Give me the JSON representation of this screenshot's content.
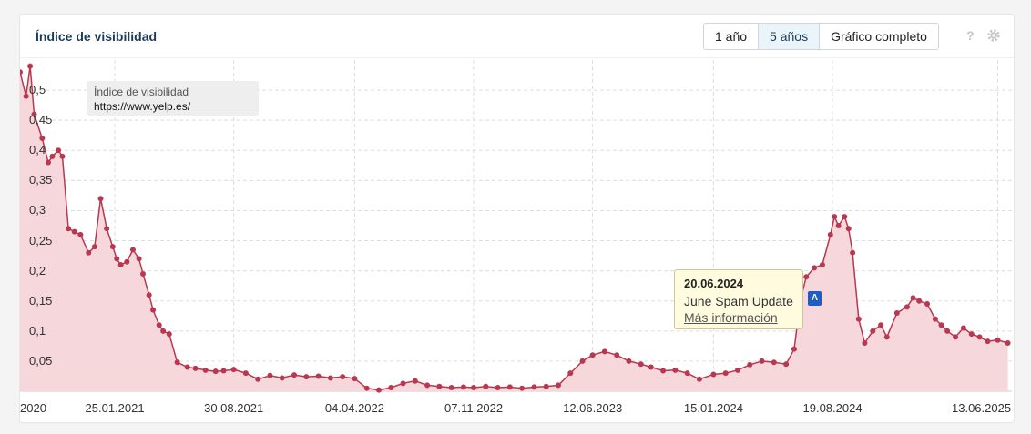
{
  "header": {
    "title": "Índice de visibilidad",
    "ranges": [
      "1 año",
      "5 años",
      "Gráfico completo"
    ],
    "active_range": "5 años"
  },
  "icons": {
    "help": "question-mark-icon",
    "settings": "gear-icon"
  },
  "legend": {
    "title": "Índice de visibilidad",
    "series": "https://www.yelp.es/"
  },
  "event": {
    "marker": "A",
    "date": "20.06.2024",
    "text": "June Spam Update",
    "link": "Más información",
    "x": 2024.47
  },
  "colors": {
    "line": "#b8384f",
    "fill": "#f5d7dc",
    "marker": "#1b5ec6",
    "title": "#1c3a57"
  },
  "chart_data": {
    "type": "area",
    "ylim": [
      0,
      0.55
    ],
    "xlim": [
      2020.6,
      2025.52
    ],
    "grid": true,
    "legend": "top-left",
    "y_ticks": [
      "0,05",
      "0,1",
      "0,15",
      "0,2",
      "0,25",
      "0,3",
      "0,35",
      "0,4",
      "0,45",
      "0,5"
    ],
    "y_tick_values": [
      0.05,
      0.1,
      0.15,
      0.2,
      0.25,
      0.3,
      0.35,
      0.4,
      0.45,
      0.5
    ],
    "x_ticks": [
      "2020",
      "25.01.2021",
      "30.08.2021",
      "04.04.2022",
      "07.11.2022",
      "12.06.2023",
      "15.01.2024",
      "19.08.2024",
      "13.06.2025"
    ],
    "x_tick_values": [
      2020.6,
      2021.07,
      2021.66,
      2022.26,
      2022.85,
      2023.44,
      2024.04,
      2024.63,
      2025.45
    ],
    "series": [
      {
        "x": [
          2020.6,
          2020.63,
          2020.65,
          2020.67,
          2020.71,
          2020.74,
          2020.76,
          2020.79,
          2020.81,
          2020.84,
          2020.87,
          2020.9,
          2020.94,
          2020.97,
          2021.0,
          2021.03,
          2021.06,
          2021.08,
          2021.1,
          2021.13,
          2021.16,
          2021.19,
          2021.21,
          2021.24,
          2021.26,
          2021.29,
          2021.31,
          2021.34,
          2021.38,
          2021.43,
          2021.47,
          2021.52,
          2021.57,
          2021.61,
          2021.66,
          2021.72,
          2021.78,
          2021.84,
          2021.9,
          2021.96,
          2022.02,
          2022.08,
          2022.14,
          2022.2,
          2022.26,
          2022.32,
          2022.38,
          2022.44,
          2022.5,
          2022.56,
          2022.62,
          2022.68,
          2022.74,
          2022.8,
          2022.85,
          2022.91,
          2022.97,
          2023.03,
          2023.09,
          2023.15,
          2023.21,
          2023.27,
          2023.33,
          2023.39,
          2023.44,
          2023.5,
          2023.56,
          2023.62,
          2023.68,
          2023.73,
          2023.79,
          2023.85,
          2023.91,
          2023.97,
          2024.04,
          2024.1,
          2024.16,
          2024.22,
          2024.28,
          2024.34,
          2024.4,
          2024.44,
          2024.47,
          2024.5,
          2024.54,
          2024.58,
          2024.62,
          2024.64,
          2024.66,
          2024.69,
          2024.71,
          2024.73,
          2024.76,
          2024.79,
          2024.83,
          2024.87,
          2024.9,
          2024.95,
          2025.0,
          2025.03,
          2025.06,
          2025.1,
          2025.14,
          2025.17,
          2025.2,
          2025.24,
          2025.28,
          2025.32,
          2025.36,
          2025.4,
          2025.45,
          2025.5
        ],
        "values": [
          0.53,
          0.49,
          0.54,
          0.46,
          0.42,
          0.38,
          0.39,
          0.4,
          0.39,
          0.27,
          0.265,
          0.26,
          0.23,
          0.24,
          0.32,
          0.27,
          0.24,
          0.22,
          0.21,
          0.215,
          0.235,
          0.22,
          0.195,
          0.16,
          0.135,
          0.11,
          0.1,
          0.095,
          0.048,
          0.04,
          0.038,
          0.035,
          0.033,
          0.034,
          0.036,
          0.03,
          0.02,
          0.026,
          0.022,
          0.027,
          0.024,
          0.025,
          0.022,
          0.024,
          0.021,
          0.005,
          0.002,
          0.006,
          0.013,
          0.017,
          0.01,
          0.008,
          0.006,
          0.007,
          0.006,
          0.008,
          0.006,
          0.007,
          0.005,
          0.007,
          0.008,
          0.01,
          0.03,
          0.05,
          0.06,
          0.066,
          0.06,
          0.05,
          0.045,
          0.04,
          0.034,
          0.035,
          0.03,
          0.02,
          0.028,
          0.03,
          0.035,
          0.044,
          0.05,
          0.048,
          0.045,
          0.07,
          0.15,
          0.19,
          0.205,
          0.21,
          0.26,
          0.29,
          0.275,
          0.29,
          0.27,
          0.23,
          0.12,
          0.08,
          0.1,
          0.11,
          0.09,
          0.13,
          0.14,
          0.155,
          0.15,
          0.145,
          0.12,
          0.11,
          0.1,
          0.09,
          0.105,
          0.095,
          0.09,
          0.083,
          0.085,
          0.08
        ]
      }
    ]
  }
}
